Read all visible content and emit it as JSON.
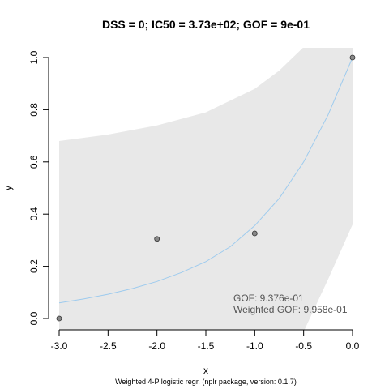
{
  "chart_data": {
    "type": "scatter",
    "title": "DSS = 0; IC50 = 3.73e+02; GOF = 9e-01",
    "xlabel": "x",
    "ylabel": "y",
    "xlim": [
      -3.0,
      0.0
    ],
    "ylim": [
      0.0,
      1.0
    ],
    "x_ticks": [
      "-3.0",
      "-2.5",
      "-2.0",
      "-1.5",
      "-1.0",
      "-0.5",
      "0.0"
    ],
    "y_ticks": [
      "0.0",
      "0.2",
      "0.4",
      "0.6",
      "0.8",
      "1.0"
    ],
    "points": [
      {
        "x": -3.0,
        "y": 0.0
      },
      {
        "x": -2.0,
        "y": 0.305
      },
      {
        "x": -1.0,
        "y": 0.326
      },
      {
        "x": 0.0,
        "y": 1.0
      }
    ],
    "fit_curve": {
      "x": [
        -3.0,
        -2.75,
        -2.5,
        -2.25,
        -2.0,
        -1.75,
        -1.5,
        -1.25,
        -1.0,
        -0.75,
        -0.5,
        -0.25,
        0.0
      ],
      "y": [
        0.06,
        0.075,
        0.093,
        0.115,
        0.142,
        0.176,
        0.218,
        0.275,
        0.356,
        0.46,
        0.6,
        0.78,
        1.0
      ],
      "color": "#9ecbee"
    },
    "confidence_band": {
      "x": [
        -3.0,
        -2.5,
        -2.0,
        -1.5,
        -1.0,
        -0.75,
        -0.5,
        -0.25,
        0.0
      ],
      "upper": [
        0.68,
        0.705,
        0.74,
        0.79,
        0.88,
        0.95,
        1.04,
        1.08,
        1.1
      ],
      "lower": [
        -0.05,
        -0.05,
        -0.05,
        -0.05,
        -0.05,
        -0.05,
        -0.05,
        0.15,
        0.36
      ],
      "color": "#e8e8e8"
    },
    "annotations": [
      {
        "text": "GOF: 9.376e-01"
      },
      {
        "text": "Weighted GOF: 9.958e-01"
      }
    ],
    "footer": "Weighted 4-P logistic regr. (nplr package, version: 0.1.7)"
  }
}
